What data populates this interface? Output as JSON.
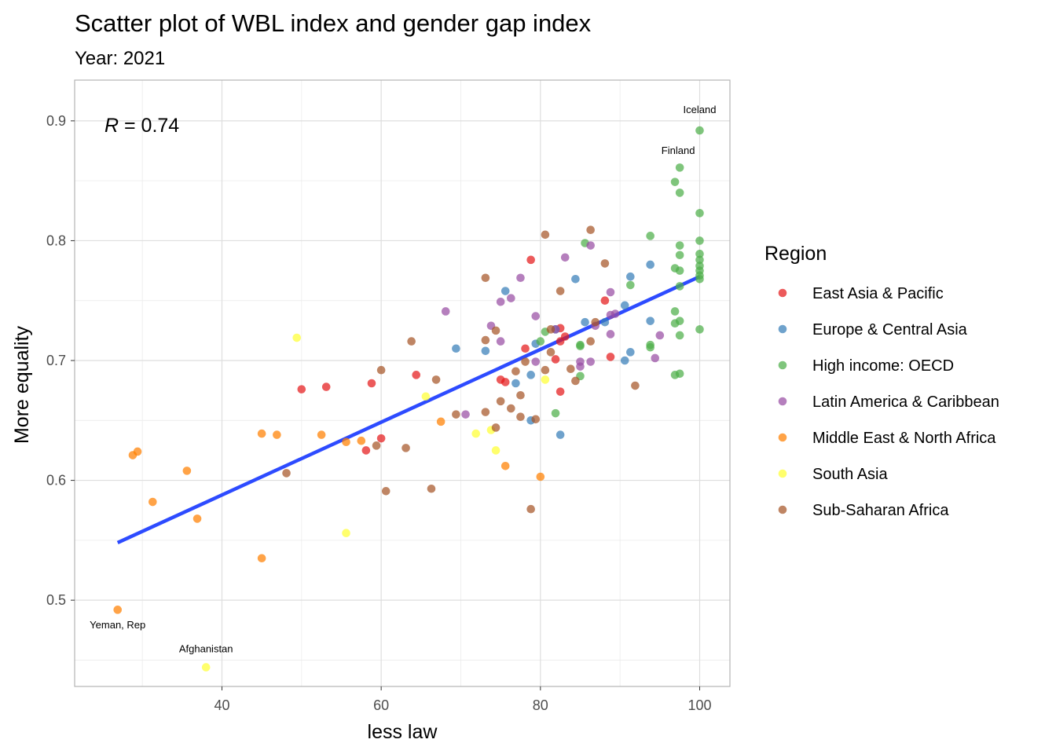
{
  "chart_data": {
    "type": "scatter",
    "title": "Scatter plot of WBL index and gender gap index",
    "subtitle": "Year: 2021",
    "xlabel": "less law",
    "ylabel": "More equality",
    "xlim": [
      21.5,
      103.8
    ],
    "ylim": [
      0.428,
      0.934
    ],
    "x_ticks": [
      40,
      60,
      80,
      100
    ],
    "y_ticks": [
      0.5,
      0.6,
      0.7,
      0.8,
      0.9
    ],
    "grid": true,
    "legend_position": "right",
    "legend_title": "Region",
    "correlation_label": {
      "r": "R",
      "rest": " = 0.74"
    },
    "regression_line": {
      "x": [
        26.9,
        100
      ],
      "y": [
        0.548,
        0.77
      ],
      "color": "#2d4bff"
    },
    "annotations": [
      {
        "text": "Iceland",
        "x": 100,
        "y": 0.909
      },
      {
        "text": "Finland",
        "x": 97.3,
        "y": 0.875
      },
      {
        "text": "Yeman, Rep",
        "x": 26.9,
        "y": 0.479
      },
      {
        "text": "Afghanistan",
        "x": 38,
        "y": 0.459
      }
    ],
    "series": [
      {
        "name": "East Asia & Pacific",
        "color": "#e41a1c",
        "points": [
          [
            50,
            0.676
          ],
          [
            53.1,
            0.678
          ],
          [
            58.8,
            0.681
          ],
          [
            58.1,
            0.625
          ],
          [
            60,
            0.635
          ],
          [
            64.4,
            0.688
          ],
          [
            75,
            0.684
          ],
          [
            75.6,
            0.682
          ],
          [
            78.1,
            0.71
          ],
          [
            78.8,
            0.784
          ],
          [
            81.9,
            0.701
          ],
          [
            82.5,
            0.727
          ],
          [
            82.5,
            0.716
          ],
          [
            83.1,
            0.72
          ],
          [
            82.5,
            0.674
          ],
          [
            88.1,
            0.75
          ],
          [
            88.8,
            0.703
          ]
        ]
      },
      {
        "name": "Europe & Central Asia",
        "color": "#377eb8",
        "points": [
          [
            69.4,
            0.71
          ],
          [
            73.1,
            0.708
          ],
          [
            75.6,
            0.758
          ],
          [
            76.9,
            0.681
          ],
          [
            78.8,
            0.688
          ],
          [
            79.4,
            0.714
          ],
          [
            78.8,
            0.65
          ],
          [
            81.9,
            0.726
          ],
          [
            82.5,
            0.638
          ],
          [
            84.4,
            0.768
          ],
          [
            85.6,
            0.732
          ],
          [
            88.1,
            0.732
          ],
          [
            90.6,
            0.746
          ],
          [
            91.3,
            0.77
          ],
          [
            90.6,
            0.7
          ],
          [
            91.3,
            0.707
          ],
          [
            93.8,
            0.78
          ],
          [
            93.8,
            0.733
          ]
        ]
      },
      {
        "name": "High income: OECD",
        "color": "#4daf4a",
        "points": [
          [
            100,
            0.892
          ],
          [
            97.5,
            0.861
          ],
          [
            96.9,
            0.849
          ],
          [
            97.5,
            0.84
          ],
          [
            100,
            0.823
          ],
          [
            93.8,
            0.804
          ],
          [
            100,
            0.8
          ],
          [
            85.6,
            0.798
          ],
          [
            97.5,
            0.796
          ],
          [
            100,
            0.789
          ],
          [
            97.5,
            0.788
          ],
          [
            100,
            0.784
          ],
          [
            100,
            0.779
          ],
          [
            96.9,
            0.777
          ],
          [
            97.5,
            0.775
          ],
          [
            100,
            0.775
          ],
          [
            100,
            0.771
          ],
          [
            100,
            0.768
          ],
          [
            91.3,
            0.763
          ],
          [
            97.5,
            0.762
          ],
          [
            96.9,
            0.741
          ],
          [
            97.5,
            0.733
          ],
          [
            96.9,
            0.731
          ],
          [
            100,
            0.726
          ],
          [
            80.6,
            0.724
          ],
          [
            97.5,
            0.721
          ],
          [
            80,
            0.716
          ],
          [
            85,
            0.713
          ],
          [
            93.8,
            0.713
          ],
          [
            85,
            0.712
          ],
          [
            93.8,
            0.711
          ],
          [
            97.5,
            0.689
          ],
          [
            96.9,
            0.688
          ],
          [
            85,
            0.687
          ],
          [
            81.9,
            0.656
          ]
        ]
      },
      {
        "name": "Latin America & Caribbean",
        "color": "#984ea3",
        "points": [
          [
            86.3,
            0.796
          ],
          [
            83.1,
            0.786
          ],
          [
            77.5,
            0.769
          ],
          [
            88.8,
            0.757
          ],
          [
            76.3,
            0.752
          ],
          [
            75,
            0.749
          ],
          [
            68.1,
            0.741
          ],
          [
            79.4,
            0.737
          ],
          [
            88.8,
            0.738
          ],
          [
            89.4,
            0.739
          ],
          [
            73.8,
            0.729
          ],
          [
            86.9,
            0.729
          ],
          [
            81.9,
            0.726
          ],
          [
            88.8,
            0.722
          ],
          [
            95,
            0.721
          ],
          [
            75,
            0.716
          ],
          [
            94.4,
            0.702
          ],
          [
            79.4,
            0.699
          ],
          [
            85,
            0.699
          ],
          [
            86.3,
            0.699
          ],
          [
            85,
            0.695
          ],
          [
            70.6,
            0.655
          ]
        ]
      },
      {
        "name": "Middle East & North Africa",
        "color": "#ff7f00",
        "points": [
          [
            29.4,
            0.624
          ],
          [
            28.8,
            0.621
          ],
          [
            35.6,
            0.608
          ],
          [
            31.3,
            0.582
          ],
          [
            36.9,
            0.568
          ],
          [
            45,
            0.639
          ],
          [
            46.9,
            0.638
          ],
          [
            52.5,
            0.638
          ],
          [
            55.6,
            0.632
          ],
          [
            57.5,
            0.633
          ],
          [
            67.5,
            0.649
          ],
          [
            75.6,
            0.612
          ],
          [
            80,
            0.603
          ],
          [
            45,
            0.535
          ],
          [
            26.9,
            0.492
          ]
        ]
      },
      {
        "name": "South Asia",
        "color": "#ffff33",
        "points": [
          [
            49.4,
            0.719
          ],
          [
            65.6,
            0.67
          ],
          [
            80.6,
            0.684
          ],
          [
            71.9,
            0.639
          ],
          [
            73.8,
            0.642
          ],
          [
            74.4,
            0.625
          ],
          [
            55.6,
            0.556
          ],
          [
            38,
            0.444
          ]
        ]
      },
      {
        "name": "Sub-Saharan Africa",
        "color": "#a65628",
        "points": [
          [
            86.3,
            0.809
          ],
          [
            80.6,
            0.805
          ],
          [
            88.1,
            0.781
          ],
          [
            73.1,
            0.769
          ],
          [
            82.5,
            0.758
          ],
          [
            86.9,
            0.732
          ],
          [
            81.3,
            0.726
          ],
          [
            74.4,
            0.725
          ],
          [
            63.8,
            0.716
          ],
          [
            73.1,
            0.717
          ],
          [
            86.3,
            0.716
          ],
          [
            78.1,
            0.699
          ],
          [
            81.3,
            0.707
          ],
          [
            60,
            0.692
          ],
          [
            76.9,
            0.691
          ],
          [
            80.6,
            0.692
          ],
          [
            83.8,
            0.693
          ],
          [
            66.9,
            0.684
          ],
          [
            84.4,
            0.683
          ],
          [
            91.9,
            0.679
          ],
          [
            77.5,
            0.671
          ],
          [
            75,
            0.666
          ],
          [
            76.3,
            0.66
          ],
          [
            69.4,
            0.655
          ],
          [
            73.1,
            0.657
          ],
          [
            77.5,
            0.653
          ],
          [
            79.4,
            0.651
          ],
          [
            74.4,
            0.644
          ],
          [
            59.4,
            0.629
          ],
          [
            63.1,
            0.627
          ],
          [
            48.1,
            0.606
          ],
          [
            60.6,
            0.591
          ],
          [
            66.3,
            0.593
          ],
          [
            78.8,
            0.576
          ]
        ]
      }
    ]
  }
}
